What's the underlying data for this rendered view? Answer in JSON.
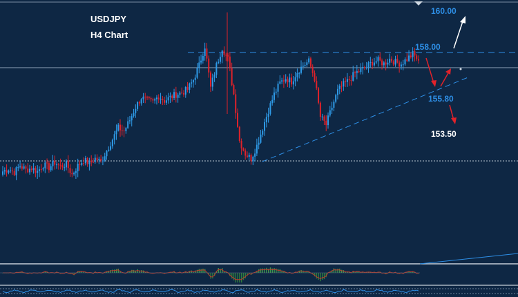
{
  "chart_data": {
    "type": "candlestick",
    "title": "USDJPY",
    "subtitle": "H4 Chart",
    "colors": {
      "background": "#0e2744",
      "bull": "#2f9be8",
      "bear": "#e0222a",
      "level_blue": "#2e8fe6",
      "level_white": "#ffffff",
      "arrow_red": "#e0222a",
      "macd_pos": "#3f9a4c",
      "macd_neg": "#2f7d3d",
      "signal": "#c0392b"
    },
    "levels": [
      {
        "value": 160.0,
        "label": "160.00",
        "color": "#2e8fe6"
      },
      {
        "value": 158.0,
        "label": "158.00",
        "color": "#2e8fe6"
      },
      {
        "value": 155.8,
        "label": "155.80",
        "color": "#2e8fe6"
      },
      {
        "value": 153.5,
        "label": "153.50",
        "color": "#ffffff"
      }
    ],
    "ylim": [
      148.5,
      161.3
    ],
    "support_level": 151.25,
    "current_level": 157.35,
    "swing_high": 158.0,
    "bull_sequence": [
      150.6,
      150.75,
      150.55,
      150.95,
      150.7,
      150.8,
      150.6,
      151.0,
      150.85,
      151.15,
      150.9,
      151.05,
      150.4,
      150.95,
      151.3,
      151.1,
      151.4,
      151.2,
      151.9,
      152.6,
      153.3,
      153.1,
      153.8,
      154.6,
      155.2,
      155.0,
      154.9,
      155.3,
      155.0,
      155.2,
      155.4,
      155.5,
      155.7,
      156.3,
      157.2,
      158.4,
      155.8,
      157.2,
      158.3,
      157.6,
      155.4,
      152.5,
      151.7,
      151.4,
      152.2,
      153.3,
      154.4,
      155.4,
      156.1,
      156.4,
      156.2,
      156.8,
      157.2,
      157.45,
      156.4,
      154.0,
      153.5,
      154.6,
      155.6,
      156.0,
      156.3,
      156.7,
      156.9,
      157.1,
      157.4,
      157.5,
      157.3,
      157.6,
      157.4,
      157.3,
      157.6,
      157.9,
      157.5
    ]
  }
}
